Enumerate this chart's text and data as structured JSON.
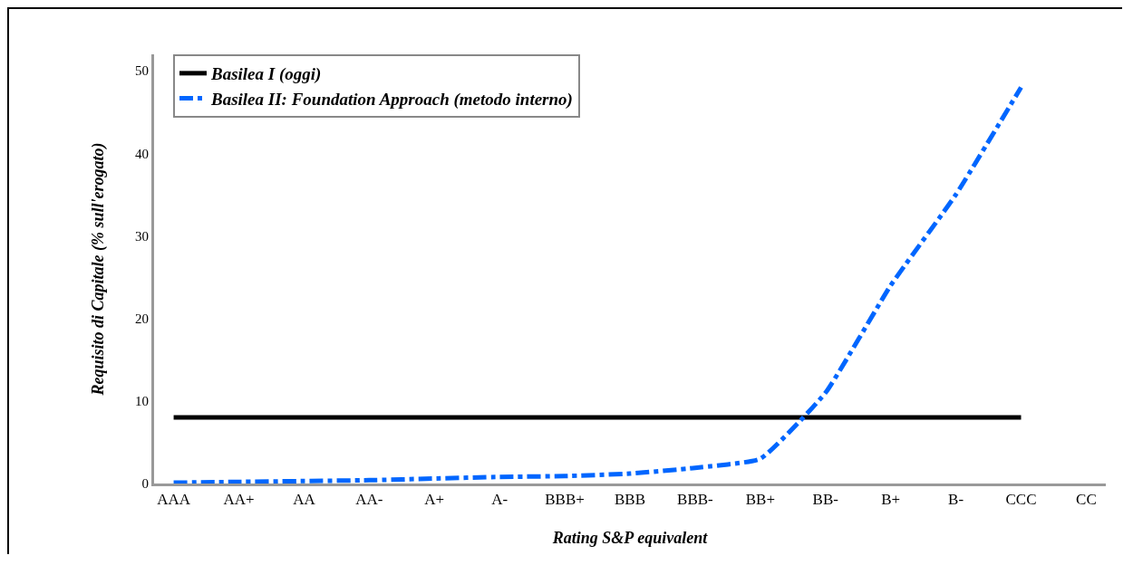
{
  "chart_data": {
    "type": "line",
    "xlabel": "Rating S&P equivalent",
    "ylabel": "Requisito di Capitale (% sull'erogato)",
    "categories": [
      "AAA",
      "AA+",
      "AA",
      "AA-",
      "A+",
      "A-",
      "BBB+",
      "BBB",
      "BBB-",
      "BB+",
      "BB-",
      "B+",
      "B-",
      "CCC",
      "CC"
    ],
    "series": [
      {
        "name": "Basilea I (oggi)",
        "color": "#000000",
        "line_style": "solid",
        "values": [
          8,
          8,
          8,
          8,
          8,
          8,
          8,
          8,
          8,
          8,
          8,
          8,
          8,
          8,
          null
        ]
      },
      {
        "name": "Basilea II: Foundation Approach (metodo interno)",
        "color": "#0066ff",
        "line_style": "dashed",
        "values": [
          0.1,
          0.2,
          0.3,
          0.4,
          0.6,
          0.8,
          0.9,
          1.2,
          1.9,
          3,
          11,
          24,
          35,
          48,
          null
        ]
      }
    ],
    "ylim": [
      0,
      52
    ],
    "yticks": [
      0,
      10,
      20,
      30,
      40,
      50
    ],
    "grid": false,
    "legend": "top left",
    "marker": "none"
  }
}
